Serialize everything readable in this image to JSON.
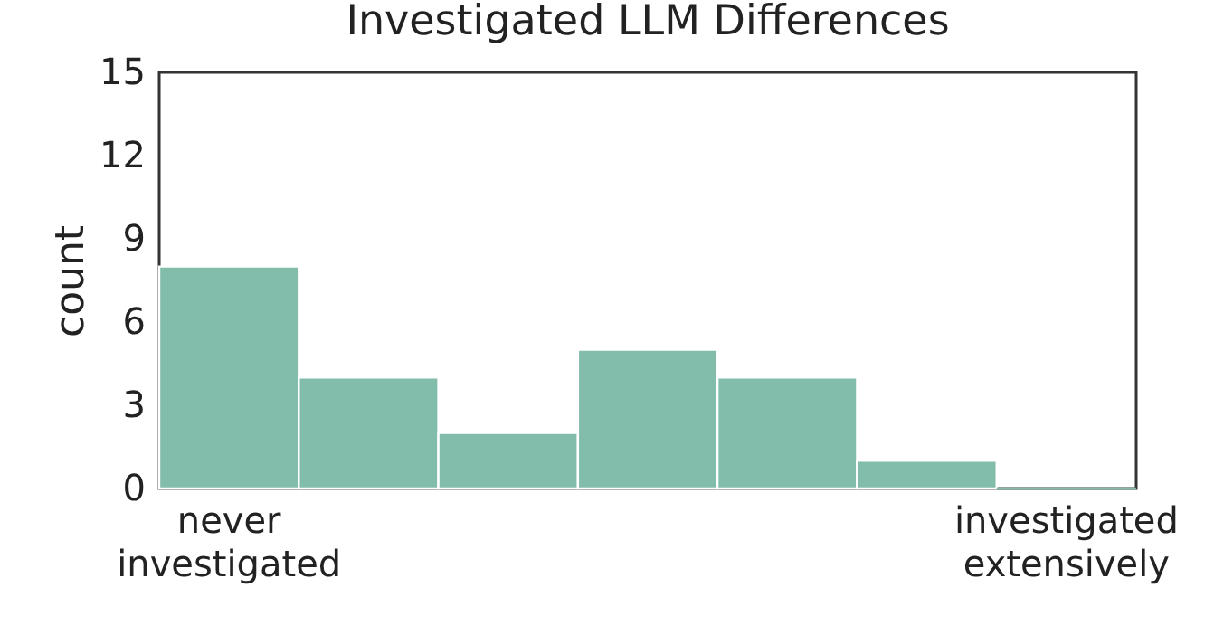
{
  "chart_data": {
    "type": "bar",
    "title": "Investigated LLM Differences",
    "ylabel": "count",
    "categories": [
      "never\ninvestigated",
      null,
      null,
      null,
      null,
      null,
      "investigated\nextensively"
    ],
    "values": [
      8,
      4,
      2,
      5,
      4,
      1,
      0
    ],
    "color": "#82bcab",
    "ylim": [
      0,
      15
    ],
    "yticks": [
      0,
      3,
      6,
      9,
      12,
      15
    ],
    "grid": false
  }
}
